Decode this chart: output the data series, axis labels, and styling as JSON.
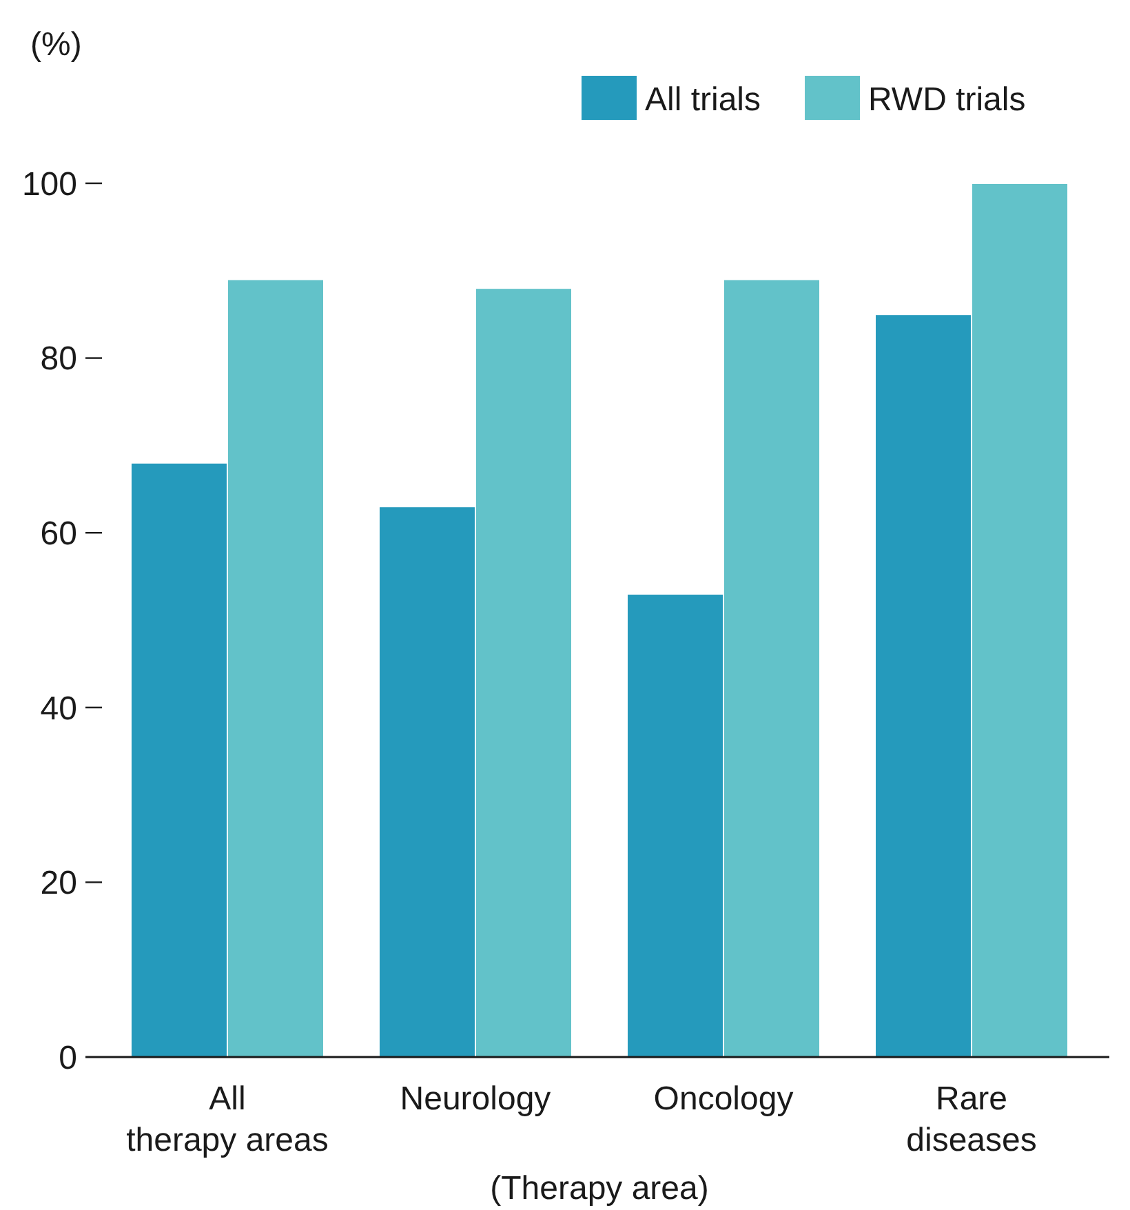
{
  "chart_data": {
    "type": "bar",
    "ylabel": "(%)",
    "xlabel": "(Therapy area)",
    "categories": [
      "All\ntherapy areas",
      "Neurology",
      "Oncology",
      "Rare\ndiseases"
    ],
    "series": [
      {
        "name": "All trials",
        "color": "#259abc",
        "values": [
          68,
          63,
          53,
          85
        ]
      },
      {
        "name": "RWD trials",
        "color": "#62c2c9",
        "values": [
          89,
          88,
          89,
          100
        ]
      }
    ],
    "ylim": [
      0,
      100
    ],
    "yticks": [
      0,
      20,
      40,
      60,
      80,
      100
    ],
    "grid": false,
    "legend": "top right"
  }
}
